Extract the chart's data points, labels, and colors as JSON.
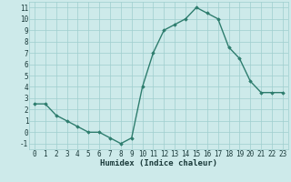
{
  "x": [
    0,
    1,
    2,
    3,
    4,
    5,
    6,
    7,
    8,
    9,
    10,
    11,
    12,
    13,
    14,
    15,
    16,
    17,
    18,
    19,
    20,
    21,
    22,
    23
  ],
  "y": [
    2.5,
    2.5,
    1.5,
    1.0,
    0.5,
    0.0,
    0.0,
    -0.5,
    -1.0,
    -0.5,
    4.0,
    7.0,
    9.0,
    9.5,
    10.0,
    11.0,
    10.5,
    10.0,
    7.5,
    6.5,
    4.5,
    3.5,
    3.5,
    3.5
  ],
  "line_color": "#2e7d6e",
  "marker": "D",
  "marker_size": 1.8,
  "bg_color": "#cdeaea",
  "grid_color": "#9ecece",
  "xlabel": "Humidex (Indice chaleur)",
  "xlabel_fontsize": 6.5,
  "xlabel_color": "#1a3a3a",
  "tick_label_color": "#1a3a3a",
  "tick_fontsize": 5.5,
  "xlim": [
    -0.5,
    23.5
  ],
  "ylim": [
    -1.5,
    11.5
  ],
  "yticks": [
    -1,
    0,
    1,
    2,
    3,
    4,
    5,
    6,
    7,
    8,
    9,
    10,
    11
  ],
  "xticks": [
    0,
    1,
    2,
    3,
    4,
    5,
    6,
    7,
    8,
    9,
    10,
    11,
    12,
    13,
    14,
    15,
    16,
    17,
    18,
    19,
    20,
    21,
    22,
    23
  ],
  "line_width": 1.0
}
